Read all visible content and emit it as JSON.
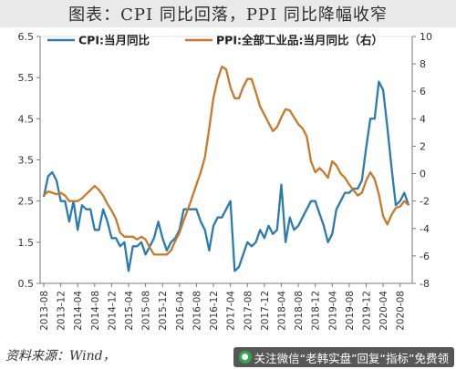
{
  "header": {
    "title": "图表：CPI 同比回落，PPI 同比降幅收窄"
  },
  "footer": {
    "source": "资料来源：Wind，",
    "watermark_text": "关注微信“老韩实盘”回复“指标”免费领"
  },
  "chart_data": {
    "type": "line",
    "title": "图表：CPI 同比回落，PPI 同比降幅收窄",
    "legend_position": "top",
    "grid": false,
    "x_ticks": [
      "2013-08",
      "2013-12",
      "2014-04",
      "2014-08",
      "2014-12",
      "2015-04",
      "2015-08",
      "2015-12",
      "2016-04",
      "2016-08",
      "2016-12",
      "2017-04",
      "2017-08",
      "2017-12",
      "2018-04",
      "2018-08",
      "2018-12",
      "2019-04",
      "2019-08",
      "2019-12",
      "2020-04",
      "2020-08"
    ],
    "y_left": {
      "min": 0.5,
      "max": 6.5,
      "ticks": [
        0.5,
        1.5,
        2.5,
        3.5,
        4.5,
        5.5,
        6.5
      ]
    },
    "y_right": {
      "min": -8,
      "max": 10,
      "ticks": [
        -8,
        -6,
        -4,
        -2,
        0,
        2,
        4,
        6,
        8,
        10
      ]
    },
    "series": [
      {
        "name": "CPI:当月同比",
        "axis": "left",
        "color": "#2a7bb0",
        "values": [
          2.6,
          3.1,
          3.2,
          3.0,
          2.5,
          2.5,
          2.0,
          2.5,
          1.8,
          2.4,
          2.3,
          2.3,
          1.8,
          1.8,
          2.3,
          2.0,
          1.6,
          1.6,
          1.4,
          1.5,
          0.8,
          1.4,
          1.4,
          1.5,
          1.2,
          1.4,
          1.6,
          2.0,
          1.6,
          1.3,
          1.5,
          1.6,
          1.8,
          2.3,
          2.3,
          2.3,
          2.3,
          2.0,
          1.8,
          1.3,
          1.9,
          2.1,
          2.1,
          2.3,
          2.5,
          0.8,
          0.9,
          1.2,
          1.5,
          1.4,
          1.5,
          1.8,
          1.6,
          1.9,
          1.7,
          1.8,
          2.9,
          1.5,
          2.1,
          1.8,
          1.9,
          2.1,
          2.3,
          2.5,
          2.5,
          2.2,
          1.9,
          1.5,
          1.7,
          2.3,
          2.5,
          2.7,
          2.7,
          2.8,
          2.8,
          3.0,
          3.8,
          4.5,
          4.5,
          5.4,
          5.2,
          4.3,
          3.3,
          2.4,
          2.5,
          2.7,
          2.4
        ]
      },
      {
        "name": "PPI:全部工业品:当月同比（右）",
        "axis": "right",
        "color": "#c8792a",
        "values": [
          -1.6,
          -1.3,
          -1.4,
          -1.5,
          -1.4,
          -1.6,
          -2.0,
          -2.0,
          -2.0,
          -1.8,
          -1.5,
          -1.2,
          -0.9,
          -1.2,
          -1.6,
          -2.2,
          -2.7,
          -3.3,
          -4.3,
          -4.6,
          -4.6,
          -4.6,
          -4.8,
          -4.6,
          -4.8,
          -5.4,
          -5.9,
          -5.9,
          -5.9,
          -5.9,
          -5.6,
          -4.9,
          -4.3,
          -3.4,
          -2.6,
          -1.7,
          -0.8,
          0.1,
          1.2,
          3.3,
          5.5,
          6.9,
          7.8,
          7.6,
          6.3,
          5.5,
          5.5,
          6.3,
          6.9,
          6.9,
          5.9,
          4.9,
          4.3,
          3.7,
          3.1,
          3.4,
          4.1,
          4.7,
          4.6,
          4.1,
          3.6,
          3.3,
          2.7,
          0.9,
          0.1,
          0.4,
          0.1,
          -0.3,
          0.9,
          0.6,
          0.0,
          -0.3,
          -0.8,
          -1.2,
          -1.6,
          -1.4,
          -0.5,
          0.1,
          -0.4,
          -1.5,
          -3.1,
          -3.7,
          -3.0,
          -2.5,
          -2.4,
          -2.0,
          -2.3
        ]
      }
    ]
  }
}
